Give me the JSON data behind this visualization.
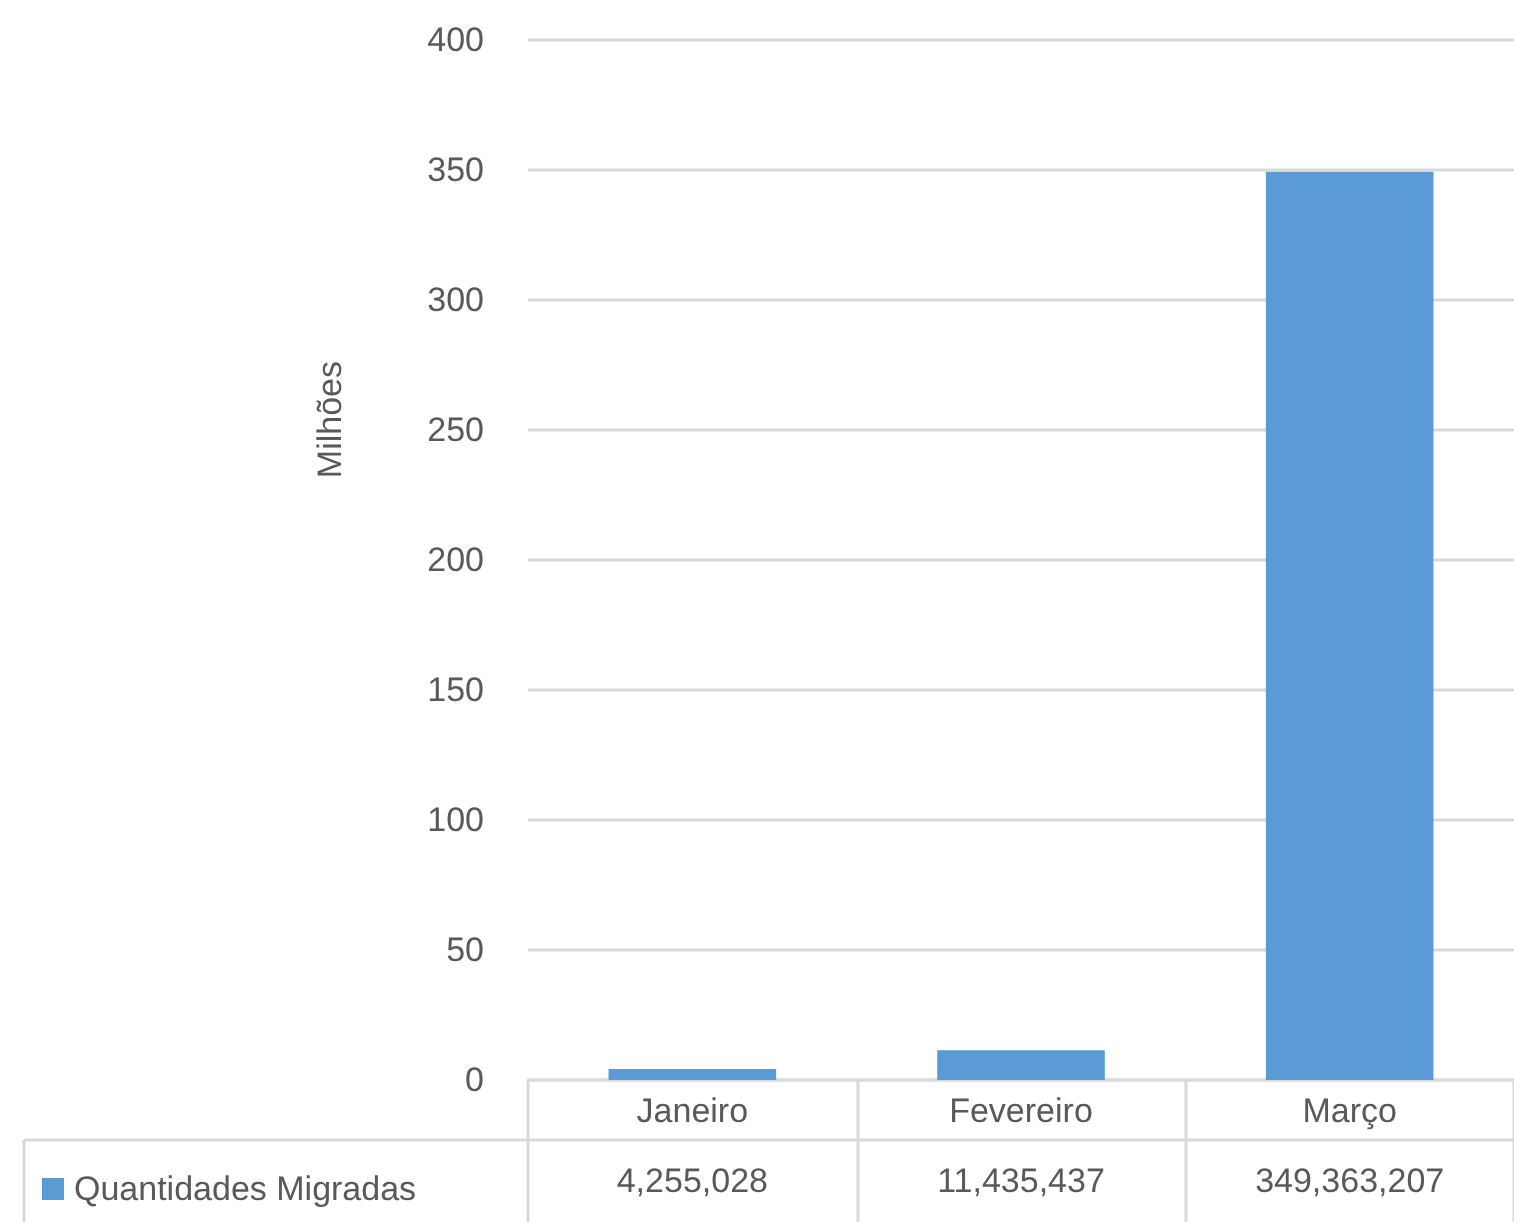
{
  "chart_data": {
    "type": "bar",
    "ylabel": "Milhões",
    "categories": [
      "Janeiro",
      "Fevereiro",
      "Março"
    ],
    "series": [
      {
        "name": "Quantidades Migradas",
        "color": "#5b9bd5",
        "values": [
          4.255028,
          11.435437,
          349.363207
        ]
      }
    ],
    "annotations": [
      "4,255,028",
      "11,435,437",
      "349,363,207"
    ],
    "ylim": [
      0,
      400
    ],
    "yticks": [
      0,
      50,
      100,
      150,
      200,
      250,
      300,
      350,
      400
    ],
    "grid": "y",
    "legend": "bottom left"
  }
}
